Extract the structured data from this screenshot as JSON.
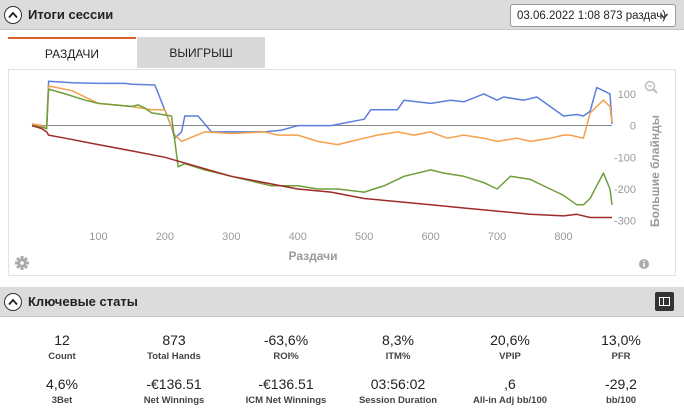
{
  "session_panel": {
    "title": "Итоги сессии",
    "session_select_value": "03.06.2022 1:08 873 раздач)",
    "tabs": [
      {
        "label": "РАЗДАЧИ",
        "active": true
      },
      {
        "label": "ВЫИГРЫШ",
        "active": false
      }
    ]
  },
  "chart_data": {
    "type": "line",
    "xlabel": "Раздачи",
    "ylabel": "Большие блайнды",
    "xlim": [
      0,
      873
    ],
    "ylim": [
      -320,
      150
    ],
    "x_ticks": [
      100,
      200,
      300,
      400,
      500,
      600,
      700,
      800
    ],
    "y_ticks": [
      100,
      0,
      -100,
      -200,
      -300
    ],
    "grid": false,
    "colors": {
      "blue": "#5b7fdc",
      "orange": "#f5a04a",
      "green": "#6f9e3a",
      "red": "#a02a2a",
      "zero": "#888888"
    },
    "series": [
      {
        "color": "#5b7fdc",
        "x": [
          0,
          15,
          22,
          25,
          60,
          100,
          140,
          150,
          185,
          210,
          215,
          225,
          230,
          250,
          270,
          300,
          350,
          375,
          400,
          430,
          450,
          500,
          510,
          550,
          560,
          600,
          630,
          650,
          680,
          700,
          710,
          740,
          760,
          800,
          820,
          830,
          840,
          850,
          860,
          870,
          873
        ],
        "y": [
          5,
          0,
          -10,
          140,
          135,
          133,
          133,
          130,
          128,
          -5,
          -40,
          -20,
          30,
          30,
          -20,
          -20,
          -20,
          -15,
          0,
          0,
          0,
          20,
          50,
          50,
          80,
          70,
          80,
          75,
          100,
          80,
          90,
          80,
          90,
          30,
          35,
          30,
          45,
          120,
          110,
          100,
          5
        ]
      },
      {
        "color": "#f5a04a",
        "x": [
          0,
          15,
          22,
          25,
          60,
          100,
          150,
          180,
          200,
          215,
          225,
          260,
          300,
          350,
          370,
          400,
          430,
          460,
          480,
          500,
          520,
          550,
          575,
          600,
          625,
          650,
          680,
          700,
          730,
          750,
          780,
          800,
          810,
          830,
          840,
          850,
          860,
          870,
          873
        ],
        "y": [
          5,
          0,
          -10,
          125,
          110,
          70,
          60,
          50,
          50,
          -30,
          -50,
          -20,
          -25,
          -20,
          -30,
          -30,
          -50,
          -60,
          -50,
          -40,
          -30,
          -20,
          -30,
          -20,
          -40,
          -30,
          -40,
          -50,
          -40,
          -50,
          -40,
          -30,
          -30,
          -40,
          40,
          60,
          80,
          60,
          10
        ]
      },
      {
        "color": "#6f9e3a",
        "x": [
          0,
          15,
          22,
          25,
          50,
          80,
          100,
          150,
          160,
          170,
          180,
          210,
          220,
          230,
          260,
          300,
          340,
          360,
          380,
          400,
          430,
          460,
          500,
          530,
          560,
          600,
          620,
          650,
          680,
          700,
          720,
          750,
          780,
          800,
          820,
          830,
          840,
          850,
          860,
          870,
          873
        ],
        "y": [
          0,
          -5,
          -10,
          115,
          100,
          80,
          70,
          60,
          65,
          55,
          40,
          30,
          -130,
          -120,
          -140,
          -160,
          -180,
          -190,
          -190,
          -190,
          -200,
          -200,
          -210,
          -190,
          -160,
          -140,
          -150,
          -160,
          -180,
          -200,
          -160,
          -170,
          -200,
          -220,
          -250,
          -250,
          -230,
          -190,
          -150,
          -200,
          -250
        ]
      },
      {
        "color": "#a02a2a",
        "x": [
          0,
          15,
          22,
          25,
          50,
          100,
          150,
          200,
          250,
          300,
          350,
          400,
          450,
          500,
          550,
          600,
          650,
          700,
          750,
          800,
          820,
          840,
          860,
          873
        ],
        "y": [
          0,
          -10,
          -20,
          -30,
          -40,
          -60,
          -80,
          -100,
          -130,
          -160,
          -180,
          -200,
          -210,
          -230,
          -240,
          -250,
          -260,
          -270,
          -280,
          -285,
          -280,
          -290,
          -290,
          -290
        ]
      }
    ]
  },
  "stats_panel": {
    "title": "Ключевые статы",
    "stats": [
      {
        "value": "12",
        "label": "Count"
      },
      {
        "value": "873",
        "label": "Total Hands"
      },
      {
        "value": "-63,6%",
        "label": "ROI%"
      },
      {
        "value": "8,3%",
        "label": "ITM%"
      },
      {
        "value": "20,6%",
        "label": "VPIP"
      },
      {
        "value": "13,0%",
        "label": "PFR"
      },
      {
        "value": "4,6%",
        "label": "3Bet"
      },
      {
        "value": "-€136.51",
        "label": "Net Winnings"
      },
      {
        "value": "-€136.51",
        "label": "ICM Net Winnings"
      },
      {
        "value": "03:56:02",
        "label": "Session Duration"
      },
      {
        "value": ",6",
        "label": "All-in Adj bb/100"
      },
      {
        "value": "-29,2",
        "label": "bb/100"
      }
    ]
  }
}
